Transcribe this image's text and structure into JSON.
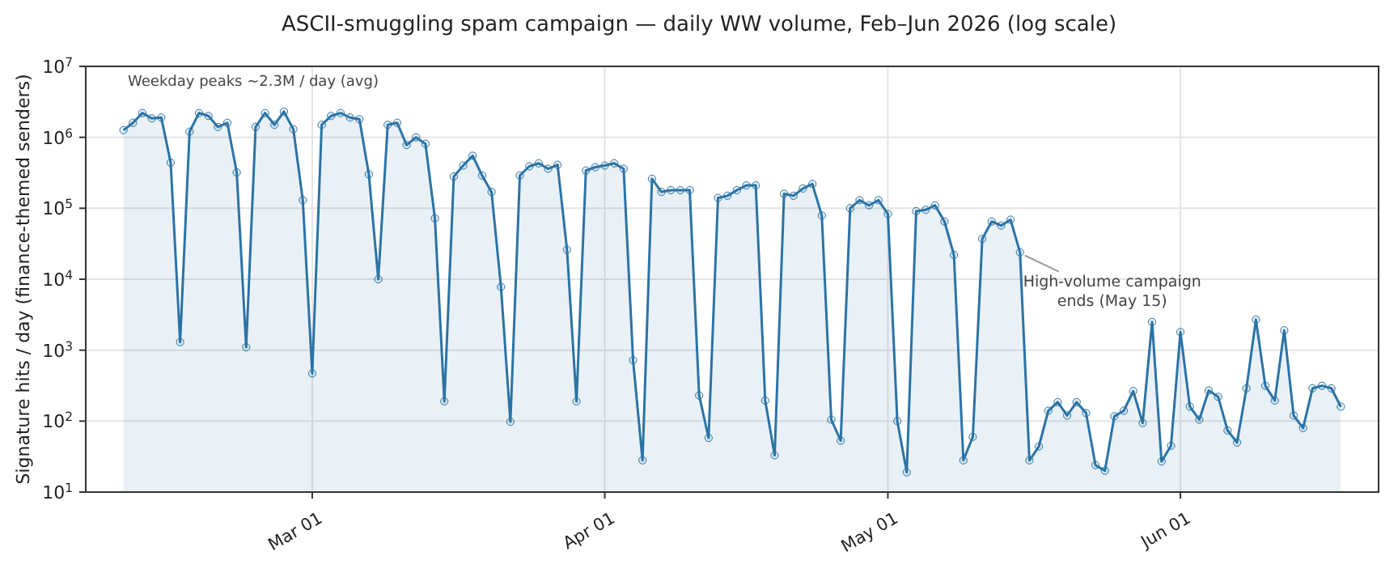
{
  "chart_data": {
    "type": "area",
    "title": "ASCII-smuggling spam campaign — daily WW volume, Feb–Jun 2026 (log scale)",
    "ylabel": "Signature hits / day (finance-themed senders)",
    "color": "#2b73a6",
    "marker": "circle",
    "log": true,
    "grid": true,
    "xlim": [
      "2026-02-05",
      "2026-06-22"
    ],
    "xticks": [
      {
        "value": "2026-03-01",
        "label": "Mar 01"
      },
      {
        "value": "2026-04-01",
        "label": "Apr 01"
      },
      {
        "value": "2026-05-01",
        "label": "May 01"
      },
      {
        "value": "2026-06-01",
        "label": "Jun 01"
      }
    ],
    "ylim": [
      10,
      10000000
    ],
    "yticks": [
      {
        "value": 10,
        "label": "10$^{1}$"
      },
      {
        "value": 100,
        "label": "10$^{2}$"
      },
      {
        "value": 1000,
        "label": "10$^{3}$"
      },
      {
        "value": 10000,
        "label": "10$^{4}$"
      },
      {
        "value": 100000,
        "label": "10$^{5}$"
      },
      {
        "value": 1000000,
        "label": "10$^{6}$"
      },
      {
        "value": 10000000,
        "label": "10$^{7}$"
      }
    ],
    "annotations": [
      "Weekday peaks ~2.3M / day (avg)",
      {
        "text": "High-volume campaign ends (May 15)",
        "x": "2026-05-15",
        "y": 24000
      }
    ],
    "x": [
      "2026-02-09",
      "2026-02-10",
      "2026-02-11",
      "2026-02-12",
      "2026-02-13",
      "2026-02-14",
      "2026-02-15",
      "2026-02-16",
      "2026-02-17",
      "2026-02-18",
      "2026-02-19",
      "2026-02-20",
      "2026-02-21",
      "2026-02-22",
      "2026-02-23",
      "2026-02-24",
      "2026-02-25",
      "2026-02-26",
      "2026-02-27",
      "2026-02-28",
      "2026-03-01",
      "2026-03-02",
      "2026-03-03",
      "2026-03-04",
      "2026-03-05",
      "2026-03-06",
      "2026-03-07",
      "2026-03-08",
      "2026-03-09",
      "2026-03-10",
      "2026-03-11",
      "2026-03-12",
      "2026-03-13",
      "2026-03-14",
      "2026-03-15",
      "2026-03-16",
      "2026-03-17",
      "2026-03-18",
      "2026-03-19",
      "2026-03-20",
      "2026-03-21",
      "2026-03-22",
      "2026-03-23",
      "2026-03-24",
      "2026-03-25",
      "2026-03-26",
      "2026-03-27",
      "2026-03-28",
      "2026-03-29",
      "2026-03-30",
      "2026-03-31",
      "2026-04-01",
      "2026-04-02",
      "2026-04-03",
      "2026-04-04",
      "2026-04-05",
      "2026-04-06",
      "2026-04-07",
      "2026-04-08",
      "2026-04-09",
      "2026-04-10",
      "2026-04-11",
      "2026-04-12",
      "2026-04-13",
      "2026-04-14",
      "2026-04-15",
      "2026-04-16",
      "2026-04-17",
      "2026-04-18",
      "2026-04-19",
      "2026-04-20",
      "2026-04-21",
      "2026-04-22",
      "2026-04-23",
      "2026-04-24",
      "2026-04-25",
      "2026-04-26",
      "2026-04-27",
      "2026-04-28",
      "2026-04-29",
      "2026-04-30",
      "2026-05-01",
      "2026-05-02",
      "2026-05-03",
      "2026-05-04",
      "2026-05-05",
      "2026-05-06",
      "2026-05-07",
      "2026-05-08",
      "2026-05-09",
      "2026-05-10",
      "2026-05-11",
      "2026-05-12",
      "2026-05-13",
      "2026-05-14",
      "2026-05-15",
      "2026-05-16",
      "2026-05-17",
      "2026-05-18",
      "2026-05-19",
      "2026-05-20",
      "2026-05-21",
      "2026-05-22",
      "2026-05-23",
      "2026-05-24",
      "2026-05-25",
      "2026-05-26",
      "2026-05-27",
      "2026-05-28",
      "2026-05-29",
      "2026-05-30",
      "2026-05-31",
      "2026-06-01",
      "2026-06-02",
      "2026-06-03",
      "2026-06-04",
      "2026-06-05",
      "2026-06-06",
      "2026-06-07",
      "2026-06-08",
      "2026-06-09",
      "2026-06-10",
      "2026-06-11",
      "2026-06-12",
      "2026-06-13",
      "2026-06-14",
      "2026-06-15",
      "2026-06-16",
      "2026-06-17",
      "2026-06-18"
    ],
    "values": [
      1260000,
      1600000,
      2200000,
      1850000,
      1900000,
      440000,
      1300,
      1200000,
      2200000,
      2000000,
      1400000,
      1600000,
      320000,
      1100,
      1400000,
      2200000,
      1500000,
      2300000,
      1300000,
      130000,
      470,
      1500000,
      2000000,
      2200000,
      1900000,
      1800000,
      300000,
      10000,
      1500000,
      1600000,
      780000,
      1000000,
      810000,
      72000,
      190,
      280000,
      400000,
      550000,
      290000,
      170000,
      7800,
      98,
      290000,
      390000,
      430000,
      360000,
      410000,
      26000,
      190,
      340000,
      380000,
      400000,
      430000,
      360000,
      720,
      28,
      260000,
      170000,
      180000,
      180000,
      180000,
      230,
      58,
      140000,
      150000,
      180000,
      210000,
      210000,
      195,
      33,
      160000,
      150000,
      190000,
      220000,
      79000,
      105,
      53,
      100000,
      130000,
      110000,
      130000,
      83000,
      100,
      19,
      91000,
      95000,
      110000,
      65000,
      22000,
      28,
      60,
      37000,
      65000,
      57000,
      69000,
      24000,
      28,
      44,
      140,
      185,
      120,
      185,
      130,
      24,
      20,
      117,
      140,
      265,
      94,
      2500,
      27,
      45,
      1800,
      160,
      105,
      270,
      220,
      74,
      50,
      290,
      2700,
      315,
      195,
      1900,
      120,
      80,
      290,
      315,
      290,
      160
    ]
  }
}
